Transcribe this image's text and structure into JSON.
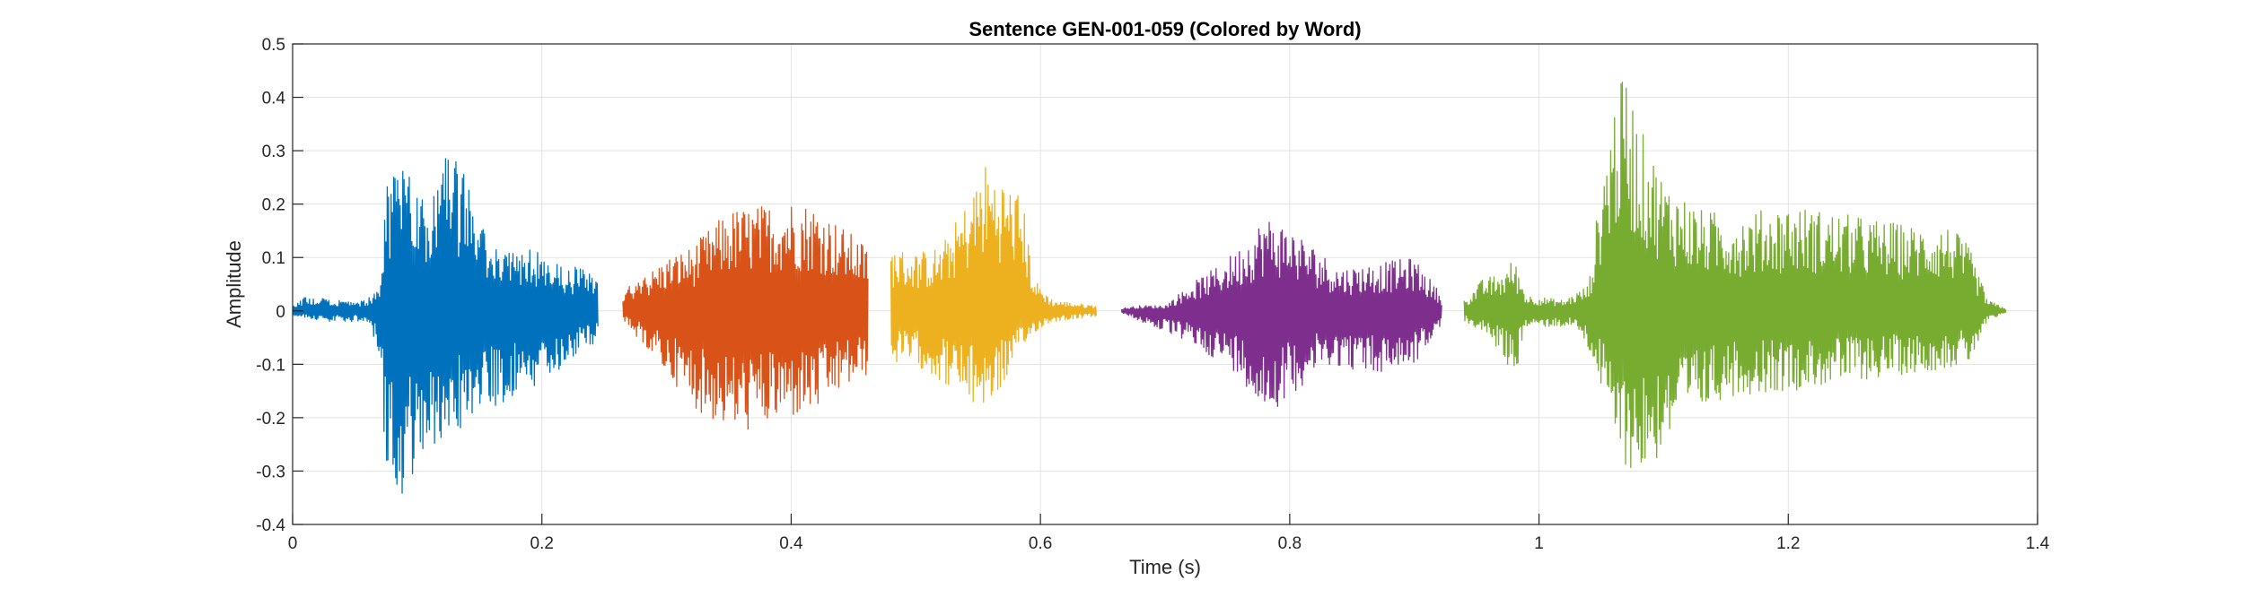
{
  "chart_data": {
    "type": "line",
    "title": "Sentence GEN-001-059 (Colored by Word)",
    "xlabel": "Time (s)",
    "ylabel": "Amplitude",
    "xlim": [
      0,
      1.4
    ],
    "ylim": [
      -0.4,
      0.5
    ],
    "xticks": [
      0,
      0.2,
      0.4,
      0.6,
      0.8,
      1,
      1.2,
      1.4
    ],
    "xtick_labels": [
      "0",
      "0.2",
      "0.4",
      "0.6",
      "0.8",
      "1",
      "1.2",
      "1.4"
    ],
    "yticks": [
      -0.4,
      -0.3,
      -0.2,
      -0.1,
      0,
      0.1,
      0.2,
      0.3,
      0.4,
      0.5
    ],
    "ytick_labels": [
      "-0.4",
      "-0.3",
      "-0.2",
      "-0.1",
      "0",
      "0.1",
      "0.2",
      "0.3",
      "0.4",
      "0.5"
    ],
    "grid": true,
    "segments": [
      {
        "color": "#0072BD",
        "t_start": 0.0,
        "t_end": 0.245,
        "envelope": [
          [
            0.0,
            0.01
          ],
          [
            0.012,
            0.03
          ],
          [
            0.03,
            0.02
          ],
          [
            0.06,
            0.02
          ],
          [
            0.07,
            0.06
          ],
          [
            0.075,
            0.25
          ],
          [
            0.085,
            0.3
          ],
          [
            0.1,
            0.22
          ],
          [
            0.125,
            0.3
          ],
          [
            0.14,
            0.25
          ],
          [
            0.16,
            0.12
          ],
          [
            0.19,
            0.12
          ],
          [
            0.21,
            0.09
          ],
          [
            0.23,
            0.08
          ],
          [
            0.245,
            0.07
          ]
        ],
        "envelope_neg": [
          [
            0.0,
            0.01
          ],
          [
            0.03,
            0.02
          ],
          [
            0.06,
            0.02
          ],
          [
            0.07,
            0.08
          ],
          [
            0.075,
            0.3
          ],
          [
            0.09,
            0.37
          ],
          [
            0.105,
            0.3
          ],
          [
            0.12,
            0.28
          ],
          [
            0.14,
            0.2
          ],
          [
            0.16,
            0.18
          ],
          [
            0.19,
            0.15
          ],
          [
            0.22,
            0.1
          ],
          [
            0.245,
            0.06
          ]
        ]
      },
      {
        "color": "#D95319",
        "t_start": 0.265,
        "t_end": 0.462,
        "envelope": [
          [
            0.265,
            0.04
          ],
          [
            0.28,
            0.06
          ],
          [
            0.3,
            0.1
          ],
          [
            0.32,
            0.12
          ],
          [
            0.35,
            0.19
          ],
          [
            0.38,
            0.2
          ],
          [
            0.4,
            0.21
          ],
          [
            0.42,
            0.2
          ],
          [
            0.44,
            0.16
          ],
          [
            0.462,
            0.12
          ]
        ],
        "envelope_neg": [
          [
            0.265,
            0.02
          ],
          [
            0.28,
            0.06
          ],
          [
            0.3,
            0.12
          ],
          [
            0.33,
            0.2
          ],
          [
            0.36,
            0.23
          ],
          [
            0.39,
            0.21
          ],
          [
            0.42,
            0.19
          ],
          [
            0.44,
            0.15
          ],
          [
            0.462,
            0.12
          ]
        ]
      },
      {
        "color": "#EDB120",
        "t_start": 0.48,
        "t_end": 0.645,
        "envelope": [
          [
            0.48,
            0.12
          ],
          [
            0.5,
            0.11
          ],
          [
            0.52,
            0.12
          ],
          [
            0.54,
            0.2
          ],
          [
            0.555,
            0.28
          ],
          [
            0.57,
            0.25
          ],
          [
            0.585,
            0.22
          ],
          [
            0.595,
            0.06
          ],
          [
            0.61,
            0.02
          ],
          [
            0.645,
            0.01
          ]
        ],
        "envelope_neg": [
          [
            0.48,
            0.1
          ],
          [
            0.5,
            0.1
          ],
          [
            0.53,
            0.15
          ],
          [
            0.545,
            0.18
          ],
          [
            0.56,
            0.18
          ],
          [
            0.58,
            0.1
          ],
          [
            0.595,
            0.04
          ],
          [
            0.61,
            0.02
          ],
          [
            0.645,
            0.01
          ]
        ]
      },
      {
        "color": "#7E2F8E",
        "t_start": 0.665,
        "t_end": 0.922,
        "envelope": [
          [
            0.665,
            0.005
          ],
          [
            0.68,
            0.01
          ],
          [
            0.7,
            0.01
          ],
          [
            0.72,
            0.05
          ],
          [
            0.74,
            0.08
          ],
          [
            0.76,
            0.12
          ],
          [
            0.78,
            0.18
          ],
          [
            0.8,
            0.16
          ],
          [
            0.82,
            0.12
          ],
          [
            0.84,
            0.08
          ],
          [
            0.87,
            0.09
          ],
          [
            0.9,
            0.1
          ],
          [
            0.922,
            0.03
          ]
        ],
        "envelope_neg": [
          [
            0.665,
            0.005
          ],
          [
            0.7,
            0.04
          ],
          [
            0.72,
            0.06
          ],
          [
            0.76,
            0.12
          ],
          [
            0.78,
            0.2
          ],
          [
            0.8,
            0.16
          ],
          [
            0.83,
            0.1
          ],
          [
            0.87,
            0.12
          ],
          [
            0.9,
            0.1
          ],
          [
            0.922,
            0.03
          ]
        ]
      },
      {
        "color": "#77AC30",
        "t_start": 0.94,
        "t_end": 1.375,
        "envelope": [
          [
            0.94,
            0.02
          ],
          [
            0.955,
            0.06
          ],
          [
            0.97,
            0.07
          ],
          [
            0.98,
            0.1
          ],
          [
            0.99,
            0.03
          ],
          [
            1.02,
            0.02
          ],
          [
            1.04,
            0.05
          ],
          [
            1.05,
            0.25
          ],
          [
            1.06,
            0.4
          ],
          [
            1.07,
            0.45
          ],
          [
            1.08,
            0.35
          ],
          [
            1.1,
            0.25
          ],
          [
            1.13,
            0.19
          ],
          [
            1.16,
            0.18
          ],
          [
            1.2,
            0.2
          ],
          [
            1.25,
            0.18
          ],
          [
            1.3,
            0.16
          ],
          [
            1.33,
            0.16
          ],
          [
            1.345,
            0.12
          ],
          [
            1.36,
            0.02
          ],
          [
            1.375,
            0.005
          ]
        ],
        "envelope_neg": [
          [
            0.94,
            0.02
          ],
          [
            0.955,
            0.04
          ],
          [
            0.97,
            0.08
          ],
          [
            0.98,
            0.13
          ],
          [
            0.99,
            0.03
          ],
          [
            1.03,
            0.03
          ],
          [
            1.045,
            0.1
          ],
          [
            1.06,
            0.25
          ],
          [
            1.075,
            0.31
          ],
          [
            1.09,
            0.3
          ],
          [
            1.11,
            0.22
          ],
          [
            1.15,
            0.16
          ],
          [
            1.2,
            0.15
          ],
          [
            1.26,
            0.13
          ],
          [
            1.32,
            0.11
          ],
          [
            1.345,
            0.1
          ],
          [
            1.36,
            0.02
          ],
          [
            1.375,
            0.005
          ]
        ]
      }
    ]
  }
}
